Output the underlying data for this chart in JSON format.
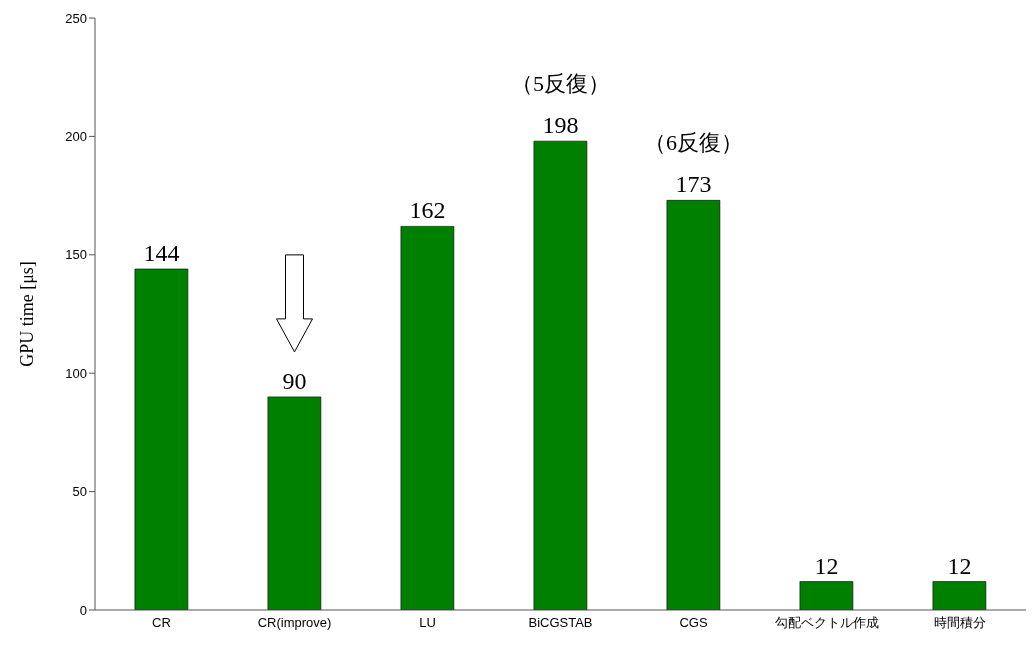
{
  "chart_data": {
    "type": "bar",
    "ylabel": "GPU time [μs]",
    "categories": [
      "CR",
      "CR(improve)",
      "LU",
      "BiCGSTAB",
      "CGS",
      "勾配ベクトル作成",
      "時間積分"
    ],
    "values": [
      144,
      90,
      162,
      198,
      173,
      12,
      12
    ],
    "color": "#008000",
    "ylim": [
      0,
      250
    ],
    "yticks": [
      0,
      50,
      100,
      150,
      200,
      250
    ],
    "data_labels": true,
    "annotations": [
      "（5反復）",
      "（6反復）"
    ]
  }
}
